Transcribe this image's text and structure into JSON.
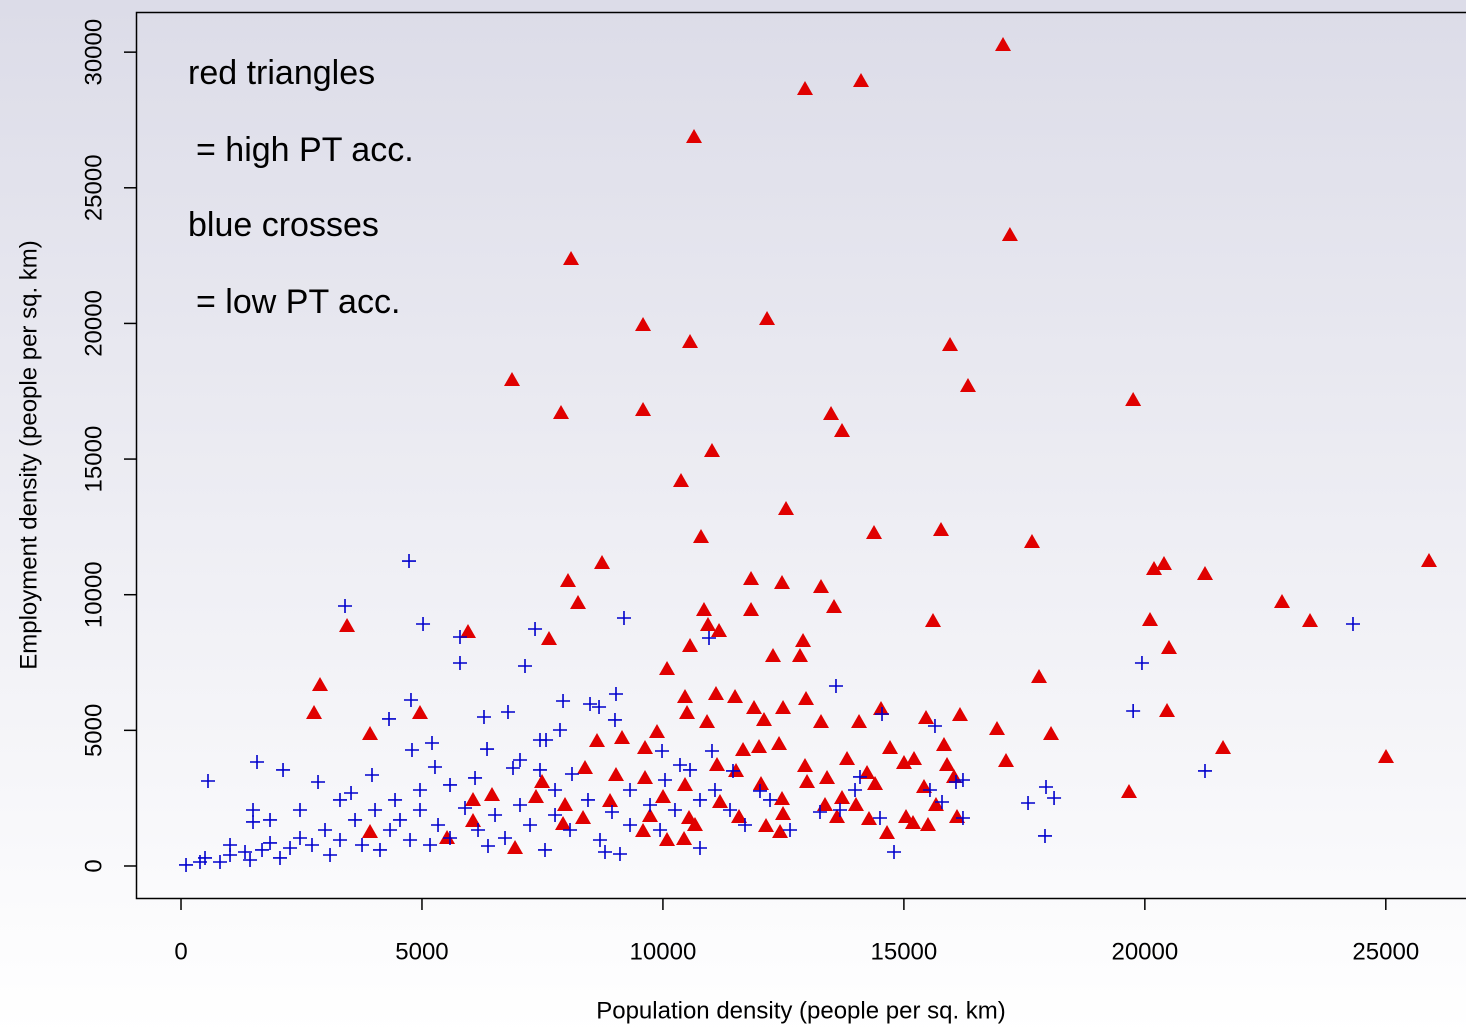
{
  "chart_data": {
    "type": "scatter",
    "x_label": "Population density (people per sq. km)",
    "y_label": "Employment density (people per sq. km)",
    "annotations": [
      "red triangles",
      "= high PT acc.",
      "blue crosses",
      "= low PT acc."
    ],
    "xlim": [
      -934,
      26664
    ],
    "ylim": [
      -1180,
      31480
    ],
    "xticks": [
      0,
      5000,
      10000,
      15000,
      20000,
      25000
    ],
    "yticks": [
      0,
      5000,
      10000,
      15000,
      20000,
      25000,
      30000
    ],
    "series": [
      {
        "color": "#e00000",
        "marker": "triangle",
        "x": [
          17057,
          14110,
          12948,
          10645,
          17200,
          8093,
          9587,
          12160,
          10562,
          15957,
          6868,
          16330,
          19757,
          7885,
          9587,
          13488,
          13716,
          11018,
          10375,
          12554,
          15770,
          14380,
          17658,
          10790,
          25896,
          20397,
          20190,
          8736,
          8030,
          11828,
          12471,
          13280,
          21248,
          22846,
          23427,
          8238,
          13550,
          11828,
          10852,
          15604,
          3445,
          10935,
          20107,
          5955,
          11164,
          7636,
          10562,
          12907,
          20501,
          12844,
          12284,
          10085,
          17804,
          2884,
          11101,
          12969,
          10458,
          11496,
          10500,
          11890,
          2760,
          4959,
          14525,
          12492,
          16164,
          20460,
          12097,
          13280,
          15459,
          14069,
          10915,
          16932,
          18053,
          3922,
          9877,
          8632,
          9151,
          17119,
          21622,
          25004,
          9628,
          11994,
          11662,
          12409,
          14712,
          15832,
          13820,
          15002,
          15210,
          15895,
          11517,
          11122,
          12948,
          13405,
          14235,
          9628,
          7491,
          8383,
          12035,
          12990,
          14401,
          15417,
          16040,
          10458,
          9026,
          19671,
          10002,
          6453,
          7366,
          8902,
          6059,
          7968,
          12471,
          13716,
          11184,
          12492,
          13363,
          15666,
          14006,
          8342,
          9732,
          10541,
          11579,
          15044,
          16102,
          6059,
          13612,
          12139,
          14276,
          15189,
          15500,
          7927,
          10665,
          9587,
          3922,
          5520,
          12430,
          14650,
          10085,
          10438,
          6931
        ],
        "values": [
          30262,
          28935,
          28640,
          26871,
          23259,
          22374,
          19941,
          20162,
          19315,
          19204,
          17914,
          17693,
          17177,
          16698,
          16808,
          16661,
          16034,
          15297,
          14191,
          13159,
          12385,
          12274,
          11943,
          12127,
          11242,
          11132,
          10947,
          11168,
          10505,
          10579,
          10431,
          10284,
          10763,
          9731,
          9031,
          9694,
          9547,
          9436,
          9436,
          9031,
          8846,
          8883,
          9068,
          8625,
          8662,
          8367,
          8109,
          8294,
          8035,
          7741,
          7741,
          7262,
          6967,
          6672,
          6340,
          6156,
          6229,
          6229,
          5640,
          5824,
          5640,
          5640,
          5787,
          5824,
          5566,
          5713,
          5382,
          5308,
          5455,
          5308,
          5308,
          5050,
          4866,
          4866,
          4939,
          4608,
          4718,
          3870,
          4349,
          4018,
          4349,
          4386,
          4276,
          4497,
          4349,
          4460,
          3944,
          3797,
          3944,
          3723,
          3502,
          3723,
          3686,
          3244,
          3428,
          3244,
          3096,
          3612,
          3023,
          3096,
          3023,
          2912,
          3281,
          2986,
          3354,
          2728,
          2543,
          2617,
          2543,
          2396,
          2433,
          2248,
          2470,
          2506,
          2359,
          1917,
          2248,
          2248,
          2248,
          1769,
          1843,
          1769,
          1806,
          1806,
          1806,
          1659,
          1806,
          1474,
          1732,
          1585,
          1511,
          1548,
          1511,
          1290,
          1253,
          1032,
          1253,
          1216,
          958,
          995,
          663
        ]
      },
      {
        "color": "#0000cc",
        "marker": "cross",
        "x": [
          4731,
          3403,
          5022,
          9192,
          7346,
          5789,
          7138,
          5789,
          10956,
          13591,
          19940,
          24319,
          19757,
          21248,
          4772,
          4316,
          9026,
          8487,
          7927,
          8674,
          6785,
          14546,
          15645,
          6287,
          5208,
          4793,
          2117,
          1577,
          560,
          2843,
          3963,
          3528,
          1494,
          1494,
          5270,
          6350,
          6889,
          7574,
          6101,
          8113,
          9981,
          11018,
          11454,
          16081,
          16226,
          18116,
          17949,
          17576,
          17928,
          14795,
          16226,
          13259,
          14504,
          15541,
          15791,
          14089,
          12014,
          9109,
          8798,
          10769,
          7553,
          6370,
          5167,
          4129,
          3092,
          2054,
          1432,
          809,
          394,
          104,
          498,
          1017,
          1328,
          1681,
          1847,
          2262,
          2469,
          2718,
          2988,
          3299,
          3611,
          3756,
          4026,
          4337,
          4544,
          4752,
          4959,
          5333,
          5582,
          5893,
          6163,
          6516,
          6723,
          7034,
          7242,
          7761,
          8072,
          8445,
          8694,
          8943,
          9317,
          9732,
          10043,
          10250,
          10769,
          11080,
          11392,
          11703,
          12222,
          12637,
          13674,
          13986,
          9940,
          7761,
          7449,
          7034,
          5582,
          4959,
          4441,
          3299,
          2469,
          1847,
          1017,
          9005,
          7864,
          7449,
          9317,
          10354,
          10562
        ],
        "values": [
          11242,
          9584,
          8920,
          9141,
          8736,
          8441,
          7372,
          7483,
          8404,
          6635,
          7483,
          8920,
          5713,
          3502,
          6119,
          5419,
          6340,
          5971,
          6082,
          5861,
          5676,
          5603,
          5160,
          5492,
          4534,
          4276,
          3539,
          3833,
          3133,
          3096,
          3354,
          2691,
          2064,
          1622,
          3649,
          4312,
          3612,
          4644,
          3244,
          3391,
          4239,
          4239,
          3502,
          3096,
          3170,
          2506,
          2912,
          2322,
          1106,
          516,
          1769,
          1990,
          1769,
          2801,
          2359,
          3281,
          2765,
          442,
          516,
          663,
          590,
          737,
          774,
          590,
          405,
          295,
          221,
          147,
          147,
          37,
          295,
          405,
          516,
          590,
          848,
          663,
          1032,
          774,
          1327,
          958,
          1696,
          774,
          2064,
          1327,
          1696,
          958,
          2064,
          1511,
          1032,
          2138,
          1327,
          1880,
          1032,
          2248,
          1511,
          1880,
          1327,
          2433,
          958,
          1990,
          1511,
          2248,
          3170,
          2064,
          2433,
          2801,
          2064,
          1511,
          2433,
          1327,
          2064,
          2801,
          1327,
          2801,
          3539,
          3907,
          2986,
          2801,
          2433,
          2433,
          2064,
          1696,
          774,
          5382,
          5013,
          4644,
          2801,
          3723,
          3539
        ]
      }
    ]
  }
}
